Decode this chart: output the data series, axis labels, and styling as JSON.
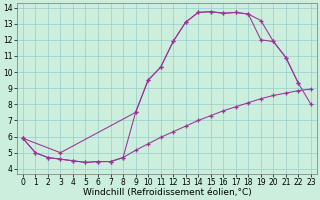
{
  "xlabel": "Windchill (Refroidissement éolien,°C)",
  "bg_color": "#cceedd",
  "line_color": "#993399",
  "grid_color": "#99cccc",
  "xlim": [
    -0.5,
    23.5
  ],
  "ylim": [
    3.7,
    14.3
  ],
  "xticks": [
    0,
    1,
    2,
    3,
    4,
    5,
    6,
    7,
    8,
    9,
    10,
    11,
    12,
    13,
    14,
    15,
    16,
    17,
    18,
    19,
    20,
    21,
    22,
    23
  ],
  "yticks": [
    4,
    5,
    6,
    7,
    8,
    9,
    10,
    11,
    12,
    13,
    14
  ],
  "curve1_x": [
    0,
    1,
    2,
    3,
    4,
    5,
    6,
    7,
    8,
    9,
    10,
    11,
    12,
    13,
    14,
    15,
    16,
    17,
    18,
    19,
    20,
    21,
    22
  ],
  "curve1_y": [
    5.9,
    5.0,
    4.7,
    4.6,
    4.5,
    4.4,
    4.45,
    4.45,
    4.7,
    7.5,
    9.5,
    10.3,
    11.9,
    13.1,
    13.7,
    13.75,
    13.65,
    13.7,
    13.6,
    13.2,
    11.9,
    10.9,
    9.3
  ],
  "curve2_x": [
    0,
    1,
    2,
    3,
    4,
    5,
    6,
    7,
    8,
    9,
    10,
    11,
    12,
    13,
    14,
    15,
    16,
    17,
    18,
    19,
    20,
    21,
    22,
    23
  ],
  "curve2_y": [
    5.9,
    5.0,
    4.7,
    4.6,
    4.5,
    4.4,
    4.45,
    4.45,
    4.7,
    5.15,
    5.55,
    5.95,
    6.3,
    6.65,
    7.0,
    7.3,
    7.6,
    7.85,
    8.1,
    8.35,
    8.55,
    8.7,
    8.85,
    8.95
  ],
  "curve3_x": [
    0,
    3,
    9,
    10,
    11,
    12,
    13,
    14,
    15,
    16,
    17,
    18,
    19,
    20,
    21,
    22,
    23
  ],
  "curve3_y": [
    5.9,
    5.0,
    7.5,
    9.5,
    10.3,
    11.9,
    13.1,
    13.7,
    13.75,
    13.65,
    13.7,
    13.6,
    12.0,
    11.9,
    10.9,
    9.3,
    8.0
  ],
  "tick_fontsize": 5.5,
  "label_fontsize": 6.5
}
